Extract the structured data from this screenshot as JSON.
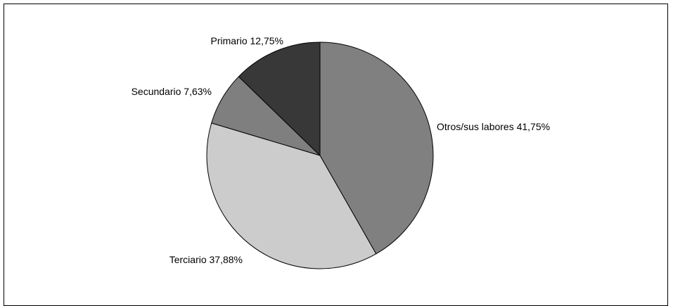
{
  "chart_data": {
    "type": "pie",
    "title": "",
    "slices": [
      {
        "label": "Otros/sus labores 41,75%",
        "category": "Otros/sus labores",
        "value": 41.75,
        "color": "#808080"
      },
      {
        "label": "Terciario 37,88%",
        "category": "Terciario",
        "value": 37.88,
        "color": "#cccccc"
      },
      {
        "label": "Secundario 7,63%",
        "category": "Secundario",
        "value": 7.63,
        "color": "#7f7f7f"
      },
      {
        "label": "Primario 12,75%",
        "category": "Primario",
        "value": 12.75,
        "color": "#383838"
      }
    ],
    "start_angle": "12 o'clock",
    "direction": "clockwise",
    "legend": "none",
    "labels": "outside"
  }
}
